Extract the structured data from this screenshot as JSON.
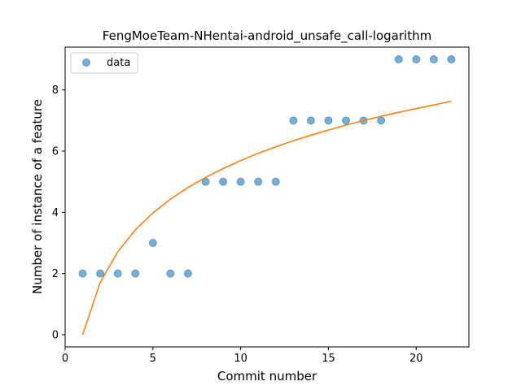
{
  "chart_data": {
    "type": "scatter",
    "title": "FengMoeTeam-NHentai-android_unsafe_call-logarithm",
    "xlabel": "Commit number",
    "ylabel": "Number of instance of a feature",
    "xlim": [
      0,
      23
    ],
    "ylim": [
      -0.4,
      9.4
    ],
    "xticks": [
      0,
      5,
      10,
      15,
      20
    ],
    "yticks": [
      0,
      2,
      4,
      6,
      8
    ],
    "grid": false,
    "legend": {
      "placement": "top-left",
      "entries": [
        "data"
      ]
    },
    "series": [
      {
        "name": "data",
        "type": "scatter",
        "color": "#1f77b4",
        "x": [
          1,
          2,
          3,
          4,
          5,
          6,
          7,
          8,
          9,
          10,
          11,
          12,
          13,
          14,
          15,
          16,
          17,
          18,
          19,
          20,
          21,
          22
        ],
        "y": [
          2,
          2,
          2,
          2,
          3,
          2,
          2,
          5,
          5,
          5,
          5,
          5,
          7,
          7,
          7,
          7,
          7,
          7,
          9,
          9,
          9,
          9
        ]
      },
      {
        "type": "line",
        "color": "#ff7f0e",
        "x": [
          1,
          2,
          3,
          4,
          5,
          6,
          7,
          8,
          9,
          10,
          11,
          12,
          13,
          14,
          15,
          16,
          17,
          18,
          19,
          20,
          21,
          22
        ],
        "y": [
          0.0,
          1.71,
          2.71,
          3.43,
          3.98,
          4.43,
          4.81,
          5.14,
          5.43,
          5.69,
          5.93,
          6.14,
          6.34,
          6.52,
          6.69,
          6.85,
          7.0,
          7.14,
          7.27,
          7.39,
          7.51,
          7.63
        ]
      }
    ]
  }
}
